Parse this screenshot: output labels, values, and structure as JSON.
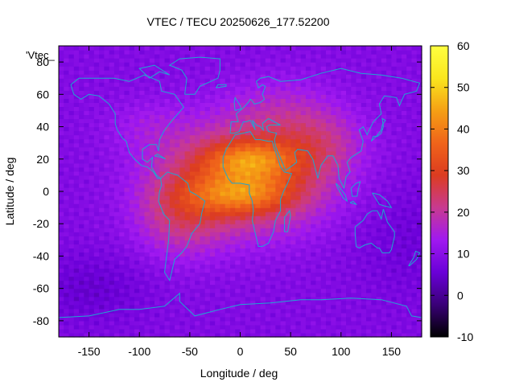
{
  "chart_data": {
    "type": "heatmap",
    "title": "VTEC / TECU 20250626_177.52200",
    "xlabel": "Longitude / deg",
    "ylabel": "Latitude / deg",
    "xlim": [
      -180,
      180
    ],
    "ylim": [
      -90,
      90
    ],
    "x_ticks": [
      -150,
      -100,
      -50,
      0,
      50,
      100,
      150
    ],
    "y_ticks": [
      -80,
      -60,
      -40,
      -20,
      0,
      20,
      40,
      60,
      80
    ],
    "colorbar": {
      "range": [
        -10,
        60
      ],
      "ticks": [
        -10,
        0,
        10,
        20,
        30,
        40,
        50,
        60
      ],
      "colors": [
        "#000000",
        "#3a0078",
        "#6a00d8",
        "#a019f0",
        "#c83a90",
        "#dc3c20",
        "#f0641a",
        "#f5a014",
        "#fae61e",
        "#ffff40"
      ]
    },
    "legend_label": "'Vtec_",
    "features": {
      "max_region": "equatorial Africa / Atlantic, lon -40 to 50, lat -10 to 25, ~50-55 TECU",
      "background": "polar and Pacific regions, ~8-12 TECU"
    }
  }
}
